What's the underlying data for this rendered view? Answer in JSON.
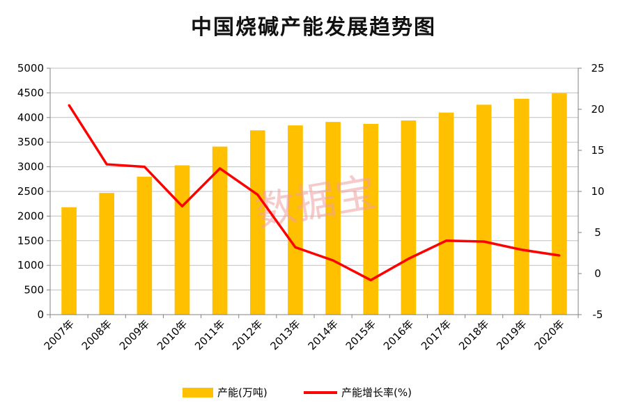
{
  "chart_data": {
    "type": "bar",
    "title": "中国烧碱产能发展趋势图",
    "categories": [
      "2007年",
      "2008年",
      "2009年",
      "2010年",
      "2011年",
      "2012年",
      "2013年",
      "2014年",
      "2015年",
      "2016年",
      "2017年",
      "2018年",
      "2019年",
      "2020年"
    ],
    "series": [
      {
        "name": "产能(万吨)",
        "type": "bar",
        "axis": "left",
        "color": "#FFC000",
        "values": [
          2180,
          2470,
          2800,
          3030,
          3410,
          3740,
          3840,
          3910,
          3870,
          3940,
          4100,
          4260,
          4380,
          4490
        ]
      },
      {
        "name": "产能增长率(%)",
        "type": "line",
        "axis": "right",
        "color": "#FF0000",
        "values": [
          20.5,
          13.3,
          13.0,
          8.2,
          12.8,
          9.6,
          3.2,
          1.6,
          -0.8,
          1.8,
          4.0,
          3.9,
          2.9,
          2.2
        ]
      }
    ],
    "y_left": {
      "min": 0,
      "max": 5000,
      "ticks": [
        "0",
        "500",
        "1000",
        "1500",
        "2000",
        "2500",
        "3000",
        "3500",
        "4000",
        "4500",
        "5000"
      ]
    },
    "y_right": {
      "min": -5,
      "max": 25,
      "ticks": [
        "-5",
        "0",
        "5",
        "10",
        "15",
        "20",
        "25"
      ]
    },
    "grid": true,
    "legend": "bottom",
    "watermark": "数据宝"
  }
}
